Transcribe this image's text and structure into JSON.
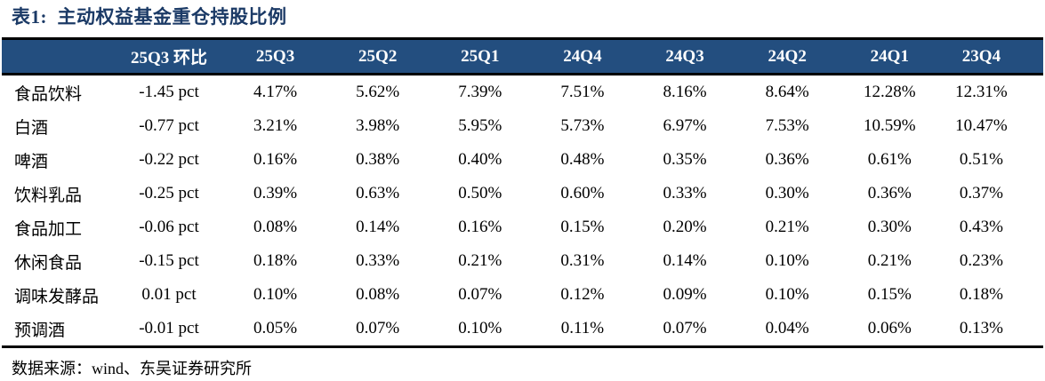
{
  "title": "表1:  主动权益基金重仓持股比例",
  "source": "数据来源：wind、东吴证券研究所",
  "colors": {
    "header_bg": "#234e7f",
    "title": "#1b3a66",
    "border": "#000000"
  },
  "table": {
    "columns": [
      "",
      "25Q3 环比",
      "25Q3",
      "25Q2",
      "25Q1",
      "24Q4",
      "24Q3",
      "24Q2",
      "24Q1",
      "23Q4"
    ],
    "rows": [
      {
        "label": "食品饮料",
        "values": [
          "-1.45 pct",
          "4.17%",
          "5.62%",
          "7.39%",
          "7.51%",
          "8.16%",
          "8.64%",
          "12.28%",
          "12.31%"
        ]
      },
      {
        "label": "白酒",
        "values": [
          "-0.77 pct",
          "3.21%",
          "3.98%",
          "5.95%",
          "5.73%",
          "6.97%",
          "7.53%",
          "10.59%",
          "10.47%"
        ]
      },
      {
        "label": "啤酒",
        "values": [
          "-0.22 pct",
          "0.16%",
          "0.38%",
          "0.40%",
          "0.48%",
          "0.35%",
          "0.36%",
          "0.61%",
          "0.51%"
        ]
      },
      {
        "label": "饮料乳品",
        "values": [
          "-0.25 pct",
          "0.39%",
          "0.63%",
          "0.50%",
          "0.60%",
          "0.33%",
          "0.30%",
          "0.36%",
          "0.37%"
        ]
      },
      {
        "label": "食品加工",
        "values": [
          "-0.06 pct",
          "0.08%",
          "0.14%",
          "0.16%",
          "0.15%",
          "0.20%",
          "0.21%",
          "0.30%",
          "0.43%"
        ]
      },
      {
        "label": "休闲食品",
        "values": [
          "-0.15 pct",
          "0.18%",
          "0.33%",
          "0.21%",
          "0.31%",
          "0.14%",
          "0.10%",
          "0.21%",
          "0.23%"
        ]
      },
      {
        "label": "调味发酵品",
        "values": [
          "0.01 pct",
          "0.10%",
          "0.08%",
          "0.07%",
          "0.12%",
          "0.09%",
          "0.10%",
          "0.15%",
          "0.18%"
        ]
      },
      {
        "label": "预调酒",
        "values": [
          "-0.01 pct",
          "0.05%",
          "0.07%",
          "0.10%",
          "0.11%",
          "0.07%",
          "0.04%",
          "0.06%",
          "0.13%"
        ]
      }
    ]
  }
}
